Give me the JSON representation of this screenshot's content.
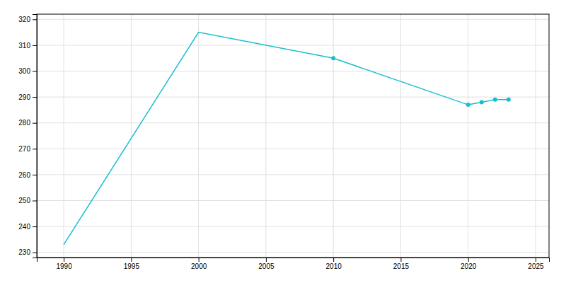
{
  "chart_data": {
    "type": "line",
    "x": [
      1990,
      2000,
      2010,
      2020,
      2021,
      2022,
      2023
    ],
    "series": [
      {
        "color": "#17BECF",
        "values": [
          233,
          315,
          305,
          null,
          null,
          null,
          null
        ]
      },
      {
        "color": "#17BECF",
        "marker": "circle",
        "values": [
          null,
          null,
          305,
          287,
          288,
          289,
          289
        ]
      }
    ],
    "xlim": [
      1988,
      2026
    ],
    "ylim": [
      228,
      322
    ],
    "xticks": [
      1990,
      1995,
      2000,
      2005,
      2010,
      2015,
      2020,
      2025
    ],
    "yticks": [
      230,
      240,
      250,
      260,
      270,
      280,
      290,
      300,
      310,
      320
    ],
    "grid": true
  }
}
